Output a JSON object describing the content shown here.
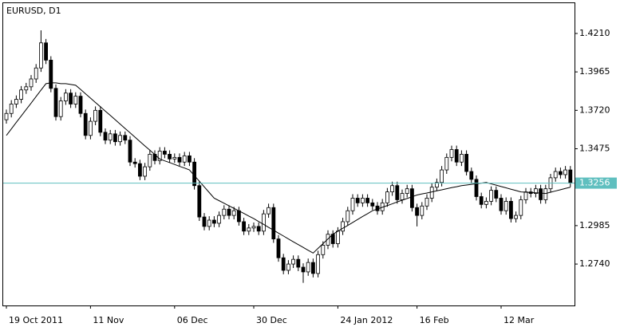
{
  "chart_data": {
    "type": "candlestick",
    "title": "EURUSD, D1",
    "categories": [
      "19 Oct 2011",
      null,
      null,
      null,
      null,
      null,
      null,
      null,
      null,
      null,
      null,
      null,
      null,
      null,
      null,
      null,
      null,
      "11 Nov",
      null,
      null,
      null,
      null,
      null,
      null,
      null,
      null,
      null,
      null,
      null,
      null,
      null,
      null,
      null,
      null,
      "06 Dec",
      null,
      null,
      null,
      null,
      null,
      null,
      null,
      null,
      null,
      null,
      null,
      null,
      null,
      null,
      null,
      "30 Dec",
      null,
      null,
      null,
      null,
      null,
      null,
      null,
      null,
      null,
      null,
      null,
      null,
      null,
      null,
      null,
      null,
      "24 Jan 2012",
      null,
      null,
      null,
      null,
      null,
      null,
      null,
      null,
      null,
      null,
      null,
      null,
      null,
      null,
      null,
      "16 Feb",
      null,
      null,
      null,
      null,
      null,
      null,
      null,
      null,
      null,
      null,
      null,
      null,
      null,
      null,
      null,
      null,
      "12 Mar",
      null,
      null,
      null,
      null,
      null,
      null,
      null,
      null,
      null,
      null,
      null,
      null,
      null,
      null
    ],
    "open": [
      1.366,
      1.37,
      1.376,
      1.379,
      1.385,
      1.387,
      1.392,
      1.399,
      1.415,
      1.404,
      1.386,
      1.368,
      1.378,
      1.383,
      1.376,
      1.381,
      1.37,
      1.356,
      1.365,
      1.372,
      1.358,
      1.353,
      1.357,
      1.352,
      1.356,
      1.353,
      1.339,
      1.338,
      1.33,
      1.336,
      1.344,
      1.34,
      1.346,
      1.344,
      1.341,
      1.342,
      1.339,
      1.343,
      1.339,
      1.324,
      1.304,
      1.298,
      1.302,
      1.3,
      1.305,
      1.309,
      1.305,
      1.308,
      1.301,
      1.295,
      1.297,
      1.298,
      1.295,
      1.306,
      1.31,
      1.29,
      1.278,
      1.27,
      1.274,
      1.277,
      1.272,
      1.269,
      1.275,
      1.268,
      1.28,
      1.286,
      1.293,
      1.287,
      1.295,
      1.301,
      1.308,
      1.316,
      1.313,
      1.316,
      1.313,
      1.311,
      1.308,
      1.313,
      1.32,
      1.324,
      1.315,
      1.319,
      1.322,
      1.31,
      1.305,
      1.311,
      1.316,
      1.323,
      1.326,
      1.334,
      1.342,
      1.347,
      1.339,
      1.344,
      1.333,
      1.328,
      1.317,
      1.312,
      1.314,
      1.321,
      1.316,
      1.308,
      1.314,
      1.303,
      1.305,
      1.315,
      1.32,
      1.319,
      1.322,
      1.315,
      1.322,
      1.329,
      1.333,
      1.331,
      1.334
    ],
    "high": [
      1.3725,
      1.3785,
      1.3815,
      1.3875,
      1.3895,
      1.3945,
      1.4015,
      1.423,
      1.4175,
      1.4065,
      1.3885,
      1.3805,
      1.3855,
      1.3855,
      1.3835,
      1.3835,
      1.3725,
      1.3675,
      1.3745,
      1.3745,
      1.3605,
      1.3595,
      1.3595,
      1.3585,
      1.3585,
      1.3555,
      1.3415,
      1.3405,
      1.3385,
      1.3465,
      1.3465,
      1.3485,
      1.3485,
      1.3465,
      1.3445,
      1.3445,
      1.3455,
      1.3455,
      1.3415,
      1.3265,
      1.3065,
      1.3045,
      1.3045,
      1.3075,
      1.3115,
      1.3115,
      1.3105,
      1.3105,
      1.3035,
      1.2995,
      1.3005,
      1.3005,
      1.3085,
      1.3125,
      1.3125,
      1.2925,
      1.2805,
      1.2765,
      1.2795,
      1.2795,
      1.2745,
      1.2775,
      1.2775,
      1.2825,
      1.2885,
      1.2955,
      1.2955,
      1.2975,
      1.3035,
      1.3105,
      1.3185,
      1.3185,
      1.3185,
      1.3185,
      1.3155,
      1.3135,
      1.3155,
      1.3225,
      1.3265,
      1.3265,
      1.3215,
      1.3245,
      1.3245,
      1.3125,
      1.3135,
      1.3185,
      1.3255,
      1.3285,
      1.3365,
      1.3445,
      1.3495,
      1.3495,
      1.3465,
      1.3465,
      1.3355,
      1.3305,
      1.3195,
      1.3165,
      1.3235,
      1.3235,
      1.3185,
      1.3165,
      1.3165,
      1.3075,
      1.3175,
      1.3225,
      1.3225,
      1.3245,
      1.3245,
      1.3245,
      1.3315,
      1.3355,
      1.3355,
      1.3365,
      1.3365
    ],
    "low": [
      1.3635,
      1.3675,
      1.3735,
      1.3765,
      1.3825,
      1.3845,
      1.3895,
      1.3965,
      1.4015,
      1.3835,
      1.3655,
      1.3655,
      1.3755,
      1.3735,
      1.3735,
      1.3675,
      1.3535,
      1.3535,
      1.3625,
      1.3555,
      1.3505,
      1.3505,
      1.3495,
      1.3495,
      1.3505,
      1.3365,
      1.3355,
      1.3275,
      1.3275,
      1.3335,
      1.3375,
      1.3375,
      1.3415,
      1.3385,
      1.3385,
      1.3365,
      1.3365,
      1.3365,
      1.3215,
      1.3015,
      1.2955,
      1.2955,
      1.2975,
      1.2975,
      1.3025,
      1.3025,
      1.3025,
      1.2985,
      1.2925,
      1.2925,
      1.2945,
      1.2925,
      1.2925,
      1.3035,
      1.2875,
      1.2755,
      1.2675,
      1.2675,
      1.2715,
      1.2695,
      1.262,
      1.2665,
      1.2655,
      1.2655,
      1.2775,
      1.2835,
      1.2845,
      1.2845,
      1.2925,
      1.2985,
      1.3055,
      1.3105,
      1.3105,
      1.3105,
      1.3085,
      1.3055,
      1.3055,
      1.3105,
      1.3175,
      1.3125,
      1.3125,
      1.3165,
      1.3075,
      1.298,
      1.3025,
      1.3085,
      1.3135,
      1.3205,
      1.3235,
      1.3315,
      1.3395,
      1.3365,
      1.3365,
      1.3305,
      1.3255,
      1.3145,
      1.3095,
      1.3095,
      1.3115,
      1.3135,
      1.3055,
      1.3055,
      1.3005,
      1.3005,
      1.3025,
      1.3125,
      1.3165,
      1.3165,
      1.3125,
      1.3125,
      1.3195,
      1.3265,
      1.3285,
      1.3285,
      1.3231
    ],
    "close": [
      1.37,
      1.376,
      1.379,
      1.385,
      1.387,
      1.392,
      1.399,
      1.415,
      1.404,
      1.386,
      1.368,
      1.378,
      1.383,
      1.376,
      1.381,
      1.37,
      1.356,
      1.365,
      1.372,
      1.358,
      1.353,
      1.357,
      1.352,
      1.356,
      1.353,
      1.339,
      1.338,
      1.33,
      1.336,
      1.344,
      1.34,
      1.346,
      1.344,
      1.341,
      1.342,
      1.339,
      1.343,
      1.339,
      1.324,
      1.304,
      1.298,
      1.302,
      1.3,
      1.305,
      1.309,
      1.305,
      1.308,
      1.301,
      1.295,
      1.297,
      1.298,
      1.295,
      1.306,
      1.31,
      1.29,
      1.278,
      1.27,
      1.274,
      1.277,
      1.272,
      1.269,
      1.275,
      1.268,
      1.28,
      1.286,
      1.293,
      1.287,
      1.295,
      1.301,
      1.308,
      1.316,
      1.313,
      1.316,
      1.313,
      1.311,
      1.308,
      1.313,
      1.32,
      1.324,
      1.315,
      1.319,
      1.322,
      1.31,
      1.305,
      1.311,
      1.316,
      1.323,
      1.326,
      1.334,
      1.342,
      1.347,
      1.339,
      1.344,
      1.333,
      1.328,
      1.317,
      1.312,
      1.314,
      1.321,
      1.316,
      1.308,
      1.314,
      1.303,
      1.305,
      1.315,
      1.32,
      1.319,
      1.322,
      1.315,
      1.322,
      1.329,
      1.333,
      1.331,
      1.334,
      1.3256
    ],
    "moving_average": {
      "color": "#000000",
      "values": [
        1.356,
        1.3601,
        1.3643,
        1.3684,
        1.3725,
        1.3766,
        1.3808,
        1.3849,
        1.389,
        1.3895,
        1.3895,
        1.389,
        1.389,
        1.3885,
        1.388,
        1.3853,
        1.3825,
        1.3798,
        1.377,
        1.3743,
        1.3715,
        1.3688,
        1.366,
        1.3632,
        1.3604,
        1.3577,
        1.3549,
        1.3521,
        1.3493,
        1.3466,
        1.3438,
        1.341,
        1.3398,
        1.3387,
        1.3375,
        1.3363,
        1.3352,
        1.334,
        1.3304,
        1.3268,
        1.3232,
        1.3196,
        1.316,
        1.3144,
        1.3128,
        1.3111,
        1.3095,
        1.3079,
        1.3063,
        1.3046,
        1.303,
        1.3011,
        1.2993,
        1.2974,
        1.2956,
        1.2937,
        1.2919,
        1.29,
        1.2882,
        1.2864,
        1.2846,
        1.2828,
        1.281,
        1.284,
        1.287,
        1.29,
        1.293,
        1.2949,
        1.2968,
        1.2986,
        1.3005,
        1.3024,
        1.3043,
        1.3061,
        1.308,
        1.3091,
        1.3102,
        1.3113,
        1.3124,
        1.3136,
        1.3147,
        1.3158,
        1.3169,
        1.318,
        1.3187,
        1.3193,
        1.32,
        1.3207,
        1.3213,
        1.322,
        1.3227,
        1.3233,
        1.324,
        1.3244,
        1.3248,
        1.3252,
        1.3256,
        1.326,
        1.3251,
        1.3243,
        1.3234,
        1.3226,
        1.3217,
        1.3209,
        1.32,
        1.3198,
        1.3196,
        1.3194,
        1.3192,
        1.319,
        1.3198,
        1.3206,
        1.3214,
        1.3222,
        1.323
      ]
    },
    "current_price": 1.3256,
    "current_price_color": "#5fbfbf",
    "up_color": "#ffffff",
    "down_color": "#000000",
    "ylim": [
      1.2476,
      1.4403
    ],
    "yticks": [
      {
        "value": 1.421,
        "label": "1.4210"
      },
      {
        "value": 1.3965,
        "label": "1.3965"
      },
      {
        "value": 1.372,
        "label": "1.3720"
      },
      {
        "value": 1.3475,
        "label": "1.3475"
      },
      {
        "value": 1.2985,
        "label": "1.2985"
      },
      {
        "value": 1.274,
        "label": "1.2740"
      }
    ]
  }
}
